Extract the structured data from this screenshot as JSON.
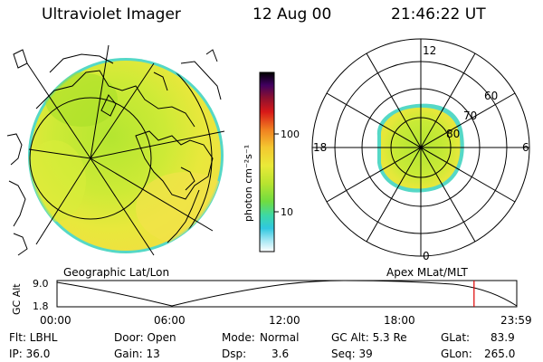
{
  "header": {
    "instrument": "Ultraviolet Imager",
    "date": "12 Aug 00",
    "time": "21:46:22 UT"
  },
  "colorbar": {
    "unit_label": "photon cm⁻²s⁻¹",
    "ticks": [
      "100",
      "10"
    ]
  },
  "polar_plot": {
    "mlt_labels": [
      "12",
      "18",
      "6",
      "0"
    ],
    "mlat_labels": [
      "60",
      "70",
      "80"
    ]
  },
  "map_labels": {
    "left": "Geographic Lat/Lon",
    "right": "Apex MLat/MLT"
  },
  "altitude_plot": {
    "ylabel": "GC Alt",
    "yticks": [
      "9.0",
      "1.8"
    ],
    "xticks": [
      "00:00",
      "06:00",
      "12:00",
      "18:00",
      "23:59"
    ],
    "marker_time_hours": 21.77,
    "marker_color": "#dd0000"
  },
  "info": {
    "flt": "Flt: LBHL",
    "ip": "IP: 36.0",
    "door": "Door: Open",
    "gain": "Gain: 13",
    "mode_label": "Mode:",
    "mode_value": "Normal",
    "dsp_label": "Dsp:",
    "dsp_value": "3.6",
    "gcalt": "GC Alt: 5.3 Re",
    "seq": "Seq: 39",
    "glat_label": "GLat:",
    "glat_value": "83.9",
    "glon_label": "GLon:",
    "glon_value": "265.0"
  },
  "colors": {
    "image_green": "#b8e832",
    "image_yellow": "#ecea3a",
    "image_cyan": "#4bd6c8"
  }
}
